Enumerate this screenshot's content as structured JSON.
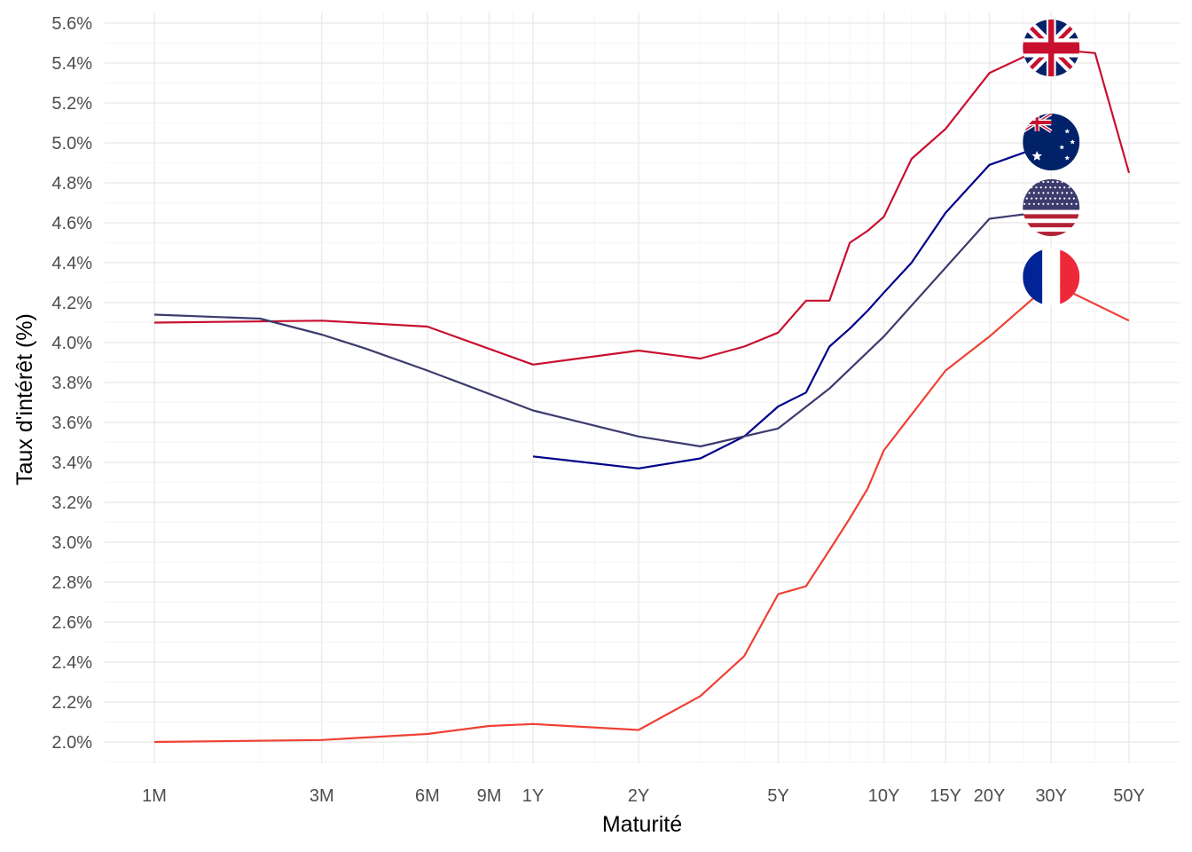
{
  "chart_data": {
    "type": "line",
    "xlabel": "Maturité",
    "ylabel": "Taux d'intérêt (%)",
    "x_scale": "log",
    "x_unit": "years",
    "ylim": [
      1.9,
      5.65
    ],
    "y_ticks": [
      2.0,
      2.2,
      2.4,
      2.6,
      2.8,
      3.0,
      3.2,
      3.4,
      3.6,
      3.8,
      4.0,
      4.2,
      4.4,
      4.6,
      4.8,
      5.0,
      5.2,
      5.4,
      5.6
    ],
    "y_tick_labels": [
      "2.0%",
      "2.2%",
      "2.4%",
      "2.6%",
      "2.8%",
      "3.0%",
      "3.2%",
      "3.4%",
      "3.6%",
      "3.8%",
      "4.0%",
      "4.2%",
      "4.4%",
      "4.6%",
      "4.8%",
      "5.0%",
      "5.2%",
      "5.4%",
      "5.6%"
    ],
    "x_ticks": [
      {
        "value": 0.0833,
        "label": "1M"
      },
      {
        "value": 0.25,
        "label": "3M"
      },
      {
        "value": 0.5,
        "label": "6M"
      },
      {
        "value": 0.75,
        "label": "9M"
      },
      {
        "value": 1,
        "label": "1Y"
      },
      {
        "value": 2,
        "label": "2Y"
      },
      {
        "value": 5,
        "label": "5Y"
      },
      {
        "value": 10,
        "label": "10Y"
      },
      {
        "value": 15,
        "label": "15Y"
      },
      {
        "value": 20,
        "label": "20Y"
      },
      {
        "value": 30,
        "label": "30Y"
      },
      {
        "value": 50,
        "label": "50Y"
      }
    ],
    "x_minor_ticks": [
      0.1667,
      0.375,
      0.625,
      0.875,
      1.5,
      3,
      4,
      6,
      7,
      8,
      9,
      12,
      17.5,
      25,
      40
    ],
    "grid": true,
    "legend": "none",
    "series": [
      {
        "color": "#c8102e",
        "flag": "uk-flag",
        "x": [
          0.0833,
          0.25,
          0.5,
          1,
          2,
          3,
          4,
          5,
          6,
          7,
          8,
          9,
          10,
          12,
          15,
          20,
          25,
          30,
          40,
          50
        ],
        "y": [
          4.1,
          4.11,
          4.08,
          3.89,
          3.96,
          3.92,
          3.98,
          4.05,
          4.21,
          4.21,
          4.5,
          4.56,
          4.63,
          4.92,
          5.07,
          5.35,
          5.43,
          5.47,
          5.45,
          4.85
        ]
      },
      {
        "color": "#00008b",
        "flag": "au-flag",
        "x": [
          1,
          2,
          3,
          4,
          5,
          6,
          7,
          8,
          9,
          10,
          12,
          15,
          20,
          30
        ],
        "y": [
          3.43,
          3.37,
          3.42,
          3.53,
          3.68,
          3.75,
          3.98,
          4.07,
          4.16,
          4.25,
          4.4,
          4.65,
          4.89,
          5.0
        ]
      },
      {
        "color": "#3c3b6e",
        "flag": "us-flag",
        "x": [
          0.0833,
          0.1667,
          0.25,
          0.333,
          0.5,
          1,
          2,
          3,
          5,
          7,
          10,
          20,
          30
        ],
        "y": [
          4.14,
          4.12,
          4.04,
          3.97,
          3.86,
          3.66,
          3.53,
          3.48,
          3.57,
          3.77,
          4.03,
          4.62,
          4.66
        ]
      },
      {
        "color": "#ef4135",
        "flag": "fr-flag",
        "x": [
          0.0833,
          0.25,
          0.5,
          0.75,
          1,
          2,
          3,
          4,
          5,
          6,
          7,
          8,
          9,
          10,
          15,
          20,
          30,
          50
        ],
        "y": [
          2.0,
          2.01,
          2.04,
          2.08,
          2.09,
          2.06,
          2.23,
          2.43,
          2.74,
          2.78,
          2.96,
          3.12,
          3.27,
          3.46,
          3.86,
          4.03,
          4.3,
          4.11
        ]
      }
    ]
  }
}
